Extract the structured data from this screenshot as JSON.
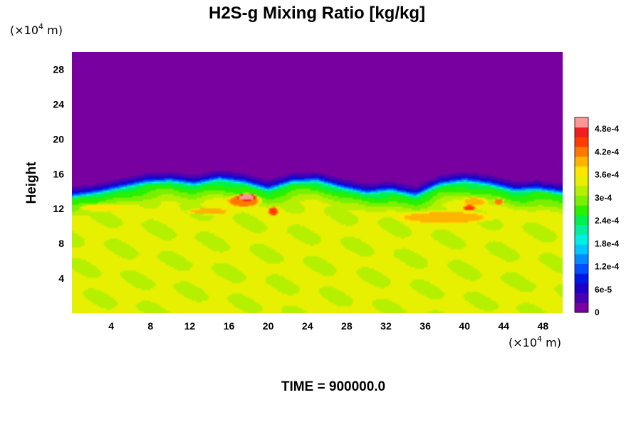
{
  "chart_data": {
    "type": "heatmap",
    "title": "H2S-g Mixing Ratio [kg/kg]",
    "ylabel": "Height",
    "x_unit": {
      "prefix": "(×10",
      "exp": "4",
      "suffix": " m)"
    },
    "y_unit": {
      "prefix": "(×10",
      "exp": "4",
      "suffix": " m)"
    },
    "x_ticks": [
      "4",
      "8",
      "12",
      "16",
      "20",
      "24",
      "28",
      "32",
      "36",
      "40",
      "44",
      "48"
    ],
    "x_tick_values": [
      4,
      8,
      12,
      16,
      20,
      24,
      28,
      32,
      36,
      40,
      44,
      48
    ],
    "y_ticks": [
      "4",
      "8",
      "12",
      "16",
      "20",
      "24",
      "28"
    ],
    "y_tick_values": [
      4,
      8,
      12,
      16,
      20,
      24,
      28
    ],
    "xlim": [
      0,
      50
    ],
    "ylim": [
      0,
      30
    ],
    "colorbar": {
      "labels": [
        "0",
        "6e-5",
        "1.2e-4",
        "1.8e-4",
        "2.4e-4",
        "3e-4",
        "3.6e-4",
        "4.2e-4",
        "4.8e-4"
      ],
      "label_values": [
        0,
        6e-05,
        0.00012,
        0.00018,
        0.00024,
        0.0003,
        0.00036,
        0.00042,
        0.00048
      ],
      "range": [
        0,
        0.00051
      ],
      "colors": [
        "#7800a0",
        "#4800b4",
        "#1e00c8",
        "#0018e6",
        "#0050ff",
        "#008cff",
        "#00c8ff",
        "#00f0e6",
        "#00f0a0",
        "#00f050",
        "#28f000",
        "#78f000",
        "#b4f000",
        "#e6f000",
        "#ffe600",
        "#ffb400",
        "#ff7800",
        "#ff3c00",
        "#f01e1e",
        "#ff9696"
      ]
    },
    "field": {
      "upper_value": 0,
      "lower_value": 0.000335,
      "interface_height": [
        13.2,
        13.6,
        14.2,
        14.8,
        15.0,
        14.6,
        15.2,
        14.8,
        14.0,
        14.9,
        15.0,
        14.2,
        13.6,
        13.9,
        13.3,
        14.6,
        15.0,
        14.6,
        13.9,
        14.0,
        13.6
      ],
      "blobs": [
        {
          "x": 17.8,
          "y": 13.3,
          "rx": 1.2,
          "ry": 0.5,
          "v": 0.0005
        },
        {
          "x": 17.5,
          "y": 12.9,
          "rx": 2.0,
          "ry": 0.8,
          "v": 0.00043
        },
        {
          "x": 20.5,
          "y": 11.7,
          "rx": 0.6,
          "ry": 0.6,
          "v": 0.00044
        },
        {
          "x": 14.0,
          "y": 11.7,
          "rx": 2.5,
          "ry": 0.4,
          "v": 0.0004
        },
        {
          "x": 38.0,
          "y": 11.0,
          "rx": 5.5,
          "ry": 0.8,
          "v": 0.0004
        },
        {
          "x": 40.5,
          "y": 12.1,
          "rx": 0.8,
          "ry": 0.4,
          "v": 0.00044
        },
        {
          "x": 43.5,
          "y": 12.8,
          "rx": 0.6,
          "ry": 0.4,
          "v": 0.00043
        },
        {
          "x": 41.0,
          "y": 12.8,
          "rx": 1.5,
          "ry": 0.6,
          "v": 0.00039
        },
        {
          "x": 3.0,
          "y": 12.1,
          "rx": 2.5,
          "ry": 0.5,
          "v": 0.00037
        }
      ]
    },
    "time_label": "TIME = 900000.0"
  }
}
